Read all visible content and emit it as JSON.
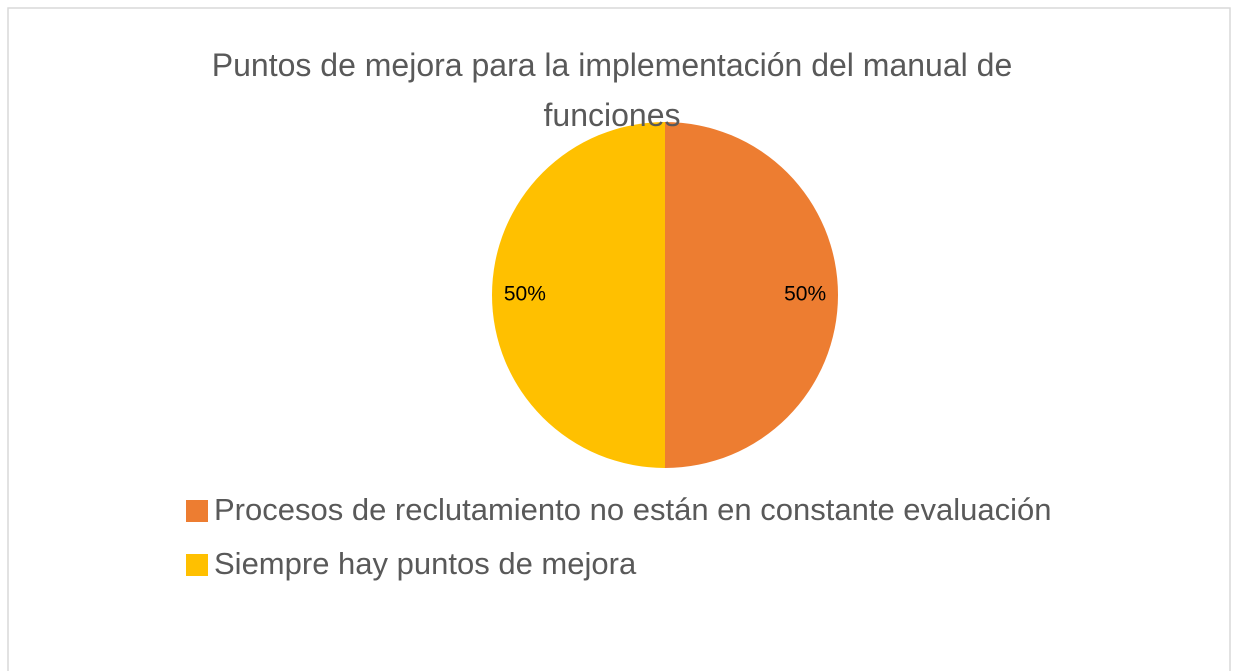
{
  "chart_data": {
    "type": "pie",
    "title": "Puntos de mejora para la implementación del manual de funciones",
    "categories": [
      "Procesos de reclutamiento no están en constante evaluación",
      "Siempre hay puntos de mejora"
    ],
    "values": [
      50,
      50
    ],
    "value_labels": [
      "50%",
      "50%"
    ],
    "colors": [
      "#ed7d31",
      "#ffc000"
    ],
    "legend": "bottom"
  }
}
